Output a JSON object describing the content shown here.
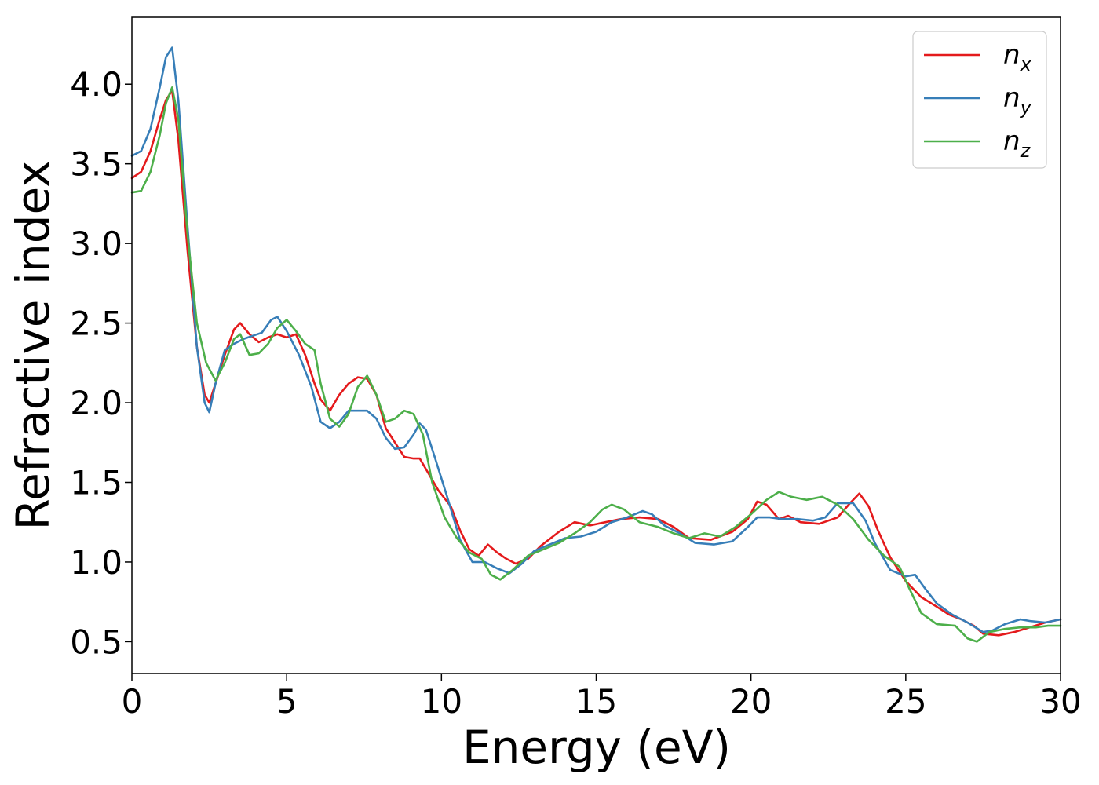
{
  "chart_data": {
    "type": "line",
    "title": "",
    "xlabel": "Energy (eV)",
    "ylabel": "Refractive index",
    "xlim": [
      0,
      30
    ],
    "ylim": [
      0.3,
      4.42
    ],
    "xticks": [
      0,
      5,
      10,
      15,
      20,
      25,
      30
    ],
    "xtick_labels": [
      "0",
      "5",
      "10",
      "15",
      "20",
      "25",
      "30"
    ],
    "yticks": [
      0.5,
      1.0,
      1.5,
      2.0,
      2.5,
      3.0,
      3.5,
      4.0
    ],
    "ytick_labels": [
      "0.5",
      "1.0",
      "1.5",
      "2.0",
      "2.5",
      "3.0",
      "3.5",
      "4.0"
    ],
    "grid": false,
    "legend_position": "top-right",
    "series": [
      {
        "name": "n_x",
        "label_base": "n",
        "label_sub": "x",
        "color": "#e41a1c",
        "points": [
          [
            0,
            3.41
          ],
          [
            0.3,
            3.45
          ],
          [
            0.6,
            3.58
          ],
          [
            0.9,
            3.78
          ],
          [
            1.1,
            3.9
          ],
          [
            1.3,
            3.96
          ],
          [
            1.5,
            3.65
          ],
          [
            1.8,
            2.95
          ],
          [
            2.1,
            2.35
          ],
          [
            2.35,
            2.05
          ],
          [
            2.5,
            2.0
          ],
          [
            2.7,
            2.12
          ],
          [
            3.0,
            2.3
          ],
          [
            3.3,
            2.46
          ],
          [
            3.5,
            2.5
          ],
          [
            3.8,
            2.43
          ],
          [
            4.1,
            2.38
          ],
          [
            4.4,
            2.41
          ],
          [
            4.7,
            2.43
          ],
          [
            5.0,
            2.41
          ],
          [
            5.3,
            2.43
          ],
          [
            5.6,
            2.3
          ],
          [
            5.9,
            2.12
          ],
          [
            6.1,
            2.02
          ],
          [
            6.4,
            1.95
          ],
          [
            6.7,
            2.05
          ],
          [
            7.0,
            2.12
          ],
          [
            7.3,
            2.16
          ],
          [
            7.6,
            2.15
          ],
          [
            7.9,
            2.05
          ],
          [
            8.2,
            1.84
          ],
          [
            8.5,
            1.75
          ],
          [
            8.8,
            1.66
          ],
          [
            9.1,
            1.65
          ],
          [
            9.3,
            1.65
          ],
          [
            9.6,
            1.55
          ],
          [
            9.9,
            1.45
          ],
          [
            10.3,
            1.35
          ],
          [
            10.6,
            1.2
          ],
          [
            10.9,
            1.08
          ],
          [
            11.2,
            1.04
          ],
          [
            11.5,
            1.11
          ],
          [
            11.8,
            1.06
          ],
          [
            12.1,
            1.02
          ],
          [
            12.4,
            0.99
          ],
          [
            12.8,
            1.02
          ],
          [
            13.2,
            1.1
          ],
          [
            13.8,
            1.19
          ],
          [
            14.3,
            1.25
          ],
          [
            14.8,
            1.23
          ],
          [
            15.3,
            1.25
          ],
          [
            15.8,
            1.27
          ],
          [
            16.4,
            1.28
          ],
          [
            17.0,
            1.27
          ],
          [
            17.5,
            1.22
          ],
          [
            18.0,
            1.15
          ],
          [
            18.7,
            1.14
          ],
          [
            19.4,
            1.19
          ],
          [
            19.9,
            1.27
          ],
          [
            20.2,
            1.38
          ],
          [
            20.5,
            1.36
          ],
          [
            20.9,
            1.27
          ],
          [
            21.2,
            1.29
          ],
          [
            21.6,
            1.25
          ],
          [
            22.2,
            1.24
          ],
          [
            22.8,
            1.28
          ],
          [
            23.2,
            1.37
          ],
          [
            23.5,
            1.43
          ],
          [
            23.8,
            1.35
          ],
          [
            24.1,
            1.2
          ],
          [
            24.5,
            1.03
          ],
          [
            25.0,
            0.88
          ],
          [
            25.5,
            0.78
          ],
          [
            26.0,
            0.72
          ],
          [
            26.4,
            0.67
          ],
          [
            26.8,
            0.64
          ],
          [
            27.2,
            0.6
          ],
          [
            27.5,
            0.55
          ],
          [
            28.0,
            0.54
          ],
          [
            28.5,
            0.56
          ],
          [
            29.0,
            0.59
          ],
          [
            29.5,
            0.62
          ],
          [
            30.0,
            0.64
          ]
        ]
      },
      {
        "name": "n_y",
        "label_base": "n",
        "label_sub": "y",
        "color": "#377eb8",
        "points": [
          [
            0,
            3.55
          ],
          [
            0.3,
            3.58
          ],
          [
            0.6,
            3.72
          ],
          [
            0.9,
            3.98
          ],
          [
            1.1,
            4.17
          ],
          [
            1.3,
            4.23
          ],
          [
            1.5,
            3.9
          ],
          [
            1.8,
            3.1
          ],
          [
            2.1,
            2.35
          ],
          [
            2.35,
            2.0
          ],
          [
            2.5,
            1.94
          ],
          [
            2.7,
            2.12
          ],
          [
            3.0,
            2.33
          ],
          [
            3.3,
            2.37
          ],
          [
            3.6,
            2.4
          ],
          [
            3.9,
            2.42
          ],
          [
            4.2,
            2.44
          ],
          [
            4.5,
            2.52
          ],
          [
            4.7,
            2.54
          ],
          [
            5.0,
            2.45
          ],
          [
            5.4,
            2.3
          ],
          [
            5.8,
            2.1
          ],
          [
            6.1,
            1.88
          ],
          [
            6.4,
            1.84
          ],
          [
            6.7,
            1.88
          ],
          [
            7.0,
            1.95
          ],
          [
            7.3,
            1.95
          ],
          [
            7.6,
            1.95
          ],
          [
            7.9,
            1.9
          ],
          [
            8.2,
            1.78
          ],
          [
            8.5,
            1.71
          ],
          [
            8.8,
            1.72
          ],
          [
            9.1,
            1.8
          ],
          [
            9.3,
            1.87
          ],
          [
            9.5,
            1.83
          ],
          [
            9.8,
            1.65
          ],
          [
            10.2,
            1.4
          ],
          [
            10.6,
            1.14
          ],
          [
            11.0,
            1.0
          ],
          [
            11.4,
            1.0
          ],
          [
            11.8,
            0.96
          ],
          [
            12.2,
            0.93
          ],
          [
            12.6,
            0.99
          ],
          [
            13.0,
            1.07
          ],
          [
            13.5,
            1.11
          ],
          [
            14.0,
            1.15
          ],
          [
            14.5,
            1.16
          ],
          [
            15.0,
            1.19
          ],
          [
            15.5,
            1.25
          ],
          [
            16.0,
            1.28
          ],
          [
            16.5,
            1.32
          ],
          [
            16.8,
            1.3
          ],
          [
            17.2,
            1.23
          ],
          [
            17.7,
            1.18
          ],
          [
            18.2,
            1.12
          ],
          [
            18.8,
            1.11
          ],
          [
            19.4,
            1.13
          ],
          [
            19.9,
            1.22
          ],
          [
            20.2,
            1.28
          ],
          [
            20.6,
            1.28
          ],
          [
            21.0,
            1.27
          ],
          [
            21.5,
            1.27
          ],
          [
            22.0,
            1.26
          ],
          [
            22.4,
            1.28
          ],
          [
            22.8,
            1.37
          ],
          [
            23.3,
            1.37
          ],
          [
            23.7,
            1.26
          ],
          [
            24.0,
            1.12
          ],
          [
            24.5,
            0.95
          ],
          [
            25.0,
            0.91
          ],
          [
            25.3,
            0.92
          ],
          [
            25.6,
            0.84
          ],
          [
            26.0,
            0.74
          ],
          [
            26.5,
            0.67
          ],
          [
            27.0,
            0.62
          ],
          [
            27.5,
            0.56
          ],
          [
            27.8,
            0.57
          ],
          [
            28.2,
            0.61
          ],
          [
            28.7,
            0.64
          ],
          [
            29.0,
            0.63
          ],
          [
            29.5,
            0.62
          ],
          [
            30.0,
            0.64
          ]
        ]
      },
      {
        "name": "n_z",
        "label_base": "n",
        "label_sub": "z",
        "color": "#4daf4a",
        "points": [
          [
            0,
            3.32
          ],
          [
            0.3,
            3.33
          ],
          [
            0.6,
            3.45
          ],
          [
            0.9,
            3.68
          ],
          [
            1.1,
            3.88
          ],
          [
            1.3,
            3.98
          ],
          [
            1.5,
            3.78
          ],
          [
            1.8,
            3.05
          ],
          [
            2.1,
            2.5
          ],
          [
            2.4,
            2.25
          ],
          [
            2.7,
            2.14
          ],
          [
            3.0,
            2.25
          ],
          [
            3.3,
            2.4
          ],
          [
            3.5,
            2.43
          ],
          [
            3.8,
            2.3
          ],
          [
            4.1,
            2.31
          ],
          [
            4.4,
            2.37
          ],
          [
            4.7,
            2.47
          ],
          [
            5.0,
            2.52
          ],
          [
            5.3,
            2.45
          ],
          [
            5.6,
            2.37
          ],
          [
            5.9,
            2.33
          ],
          [
            6.1,
            2.12
          ],
          [
            6.4,
            1.9
          ],
          [
            6.7,
            1.85
          ],
          [
            7.0,
            1.93
          ],
          [
            7.3,
            2.1
          ],
          [
            7.6,
            2.17
          ],
          [
            7.9,
            2.05
          ],
          [
            8.2,
            1.88
          ],
          [
            8.5,
            1.9
          ],
          [
            8.8,
            1.95
          ],
          [
            9.1,
            1.93
          ],
          [
            9.4,
            1.8
          ],
          [
            9.7,
            1.5
          ],
          [
            10.1,
            1.28
          ],
          [
            10.5,
            1.15
          ],
          [
            10.9,
            1.06
          ],
          [
            11.3,
            1.02
          ],
          [
            11.6,
            0.92
          ],
          [
            11.9,
            0.89
          ],
          [
            12.3,
            0.95
          ],
          [
            12.8,
            1.04
          ],
          [
            13.3,
            1.08
          ],
          [
            13.8,
            1.12
          ],
          [
            14.3,
            1.18
          ],
          [
            14.8,
            1.25
          ],
          [
            15.2,
            1.33
          ],
          [
            15.5,
            1.36
          ],
          [
            15.9,
            1.33
          ],
          [
            16.4,
            1.25
          ],
          [
            17.0,
            1.22
          ],
          [
            17.5,
            1.18
          ],
          [
            18.0,
            1.15
          ],
          [
            18.5,
            1.18
          ],
          [
            19.0,
            1.16
          ],
          [
            19.5,
            1.22
          ],
          [
            20.0,
            1.3
          ],
          [
            20.5,
            1.39
          ],
          [
            20.9,
            1.44
          ],
          [
            21.3,
            1.41
          ],
          [
            21.8,
            1.39
          ],
          [
            22.3,
            1.41
          ],
          [
            22.8,
            1.36
          ],
          [
            23.3,
            1.27
          ],
          [
            23.8,
            1.14
          ],
          [
            24.3,
            1.04
          ],
          [
            24.8,
            0.97
          ],
          [
            25.1,
            0.84
          ],
          [
            25.5,
            0.68
          ],
          [
            26.0,
            0.61
          ],
          [
            26.6,
            0.6
          ],
          [
            27.0,
            0.52
          ],
          [
            27.3,
            0.5
          ],
          [
            27.7,
            0.56
          ],
          [
            28.2,
            0.58
          ],
          [
            28.7,
            0.59
          ],
          [
            29.2,
            0.59
          ],
          [
            29.6,
            0.6
          ],
          [
            30.0,
            0.6
          ]
        ]
      }
    ]
  }
}
